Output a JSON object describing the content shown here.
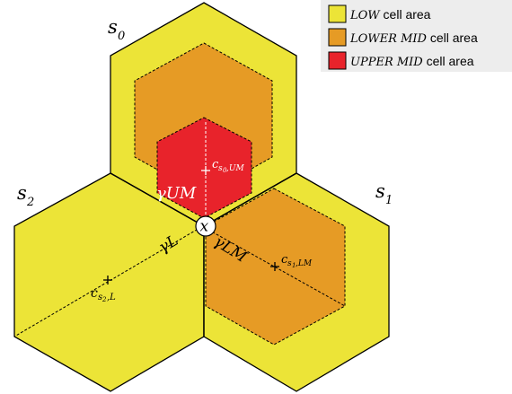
{
  "colors": {
    "low": "#ece437",
    "lower_mid": "#e69b25",
    "upper_mid": "#e8232b",
    "outline": "#000000"
  },
  "legend": [
    {
      "key": "low",
      "italic": "LOW",
      "text": " cell area"
    },
    {
      "key": "lower_mid",
      "italic": "LOWER MID",
      "text": " cell area"
    },
    {
      "key": "upper_mid",
      "italic": "UPPER MID",
      "text": " cell area"
    }
  ],
  "labels": {
    "s0": "s",
    "s0_sub": "0",
    "s1": "s",
    "s1_sub": "1",
    "s2": "s",
    "s2_sub": "2",
    "x": "x",
    "gamma_um": "γUM",
    "gamma_l": "γL",
    "gamma_lm": "γLM",
    "c_s0_um": "c",
    "c_s0_um_sub": "s",
    "c_s0_um_subsub": "0",
    "c_s0_um_tail": ",UM",
    "c_s1_lm": "c",
    "c_s1_lm_sub": "s",
    "c_s1_lm_subsub": "1",
    "c_s1_lm_tail": ",LM",
    "c_s2_l": "c",
    "c_s2_l_sub": "s",
    "c_s2_l_subsub": "2",
    "c_s2_l_tail": ",L"
  }
}
